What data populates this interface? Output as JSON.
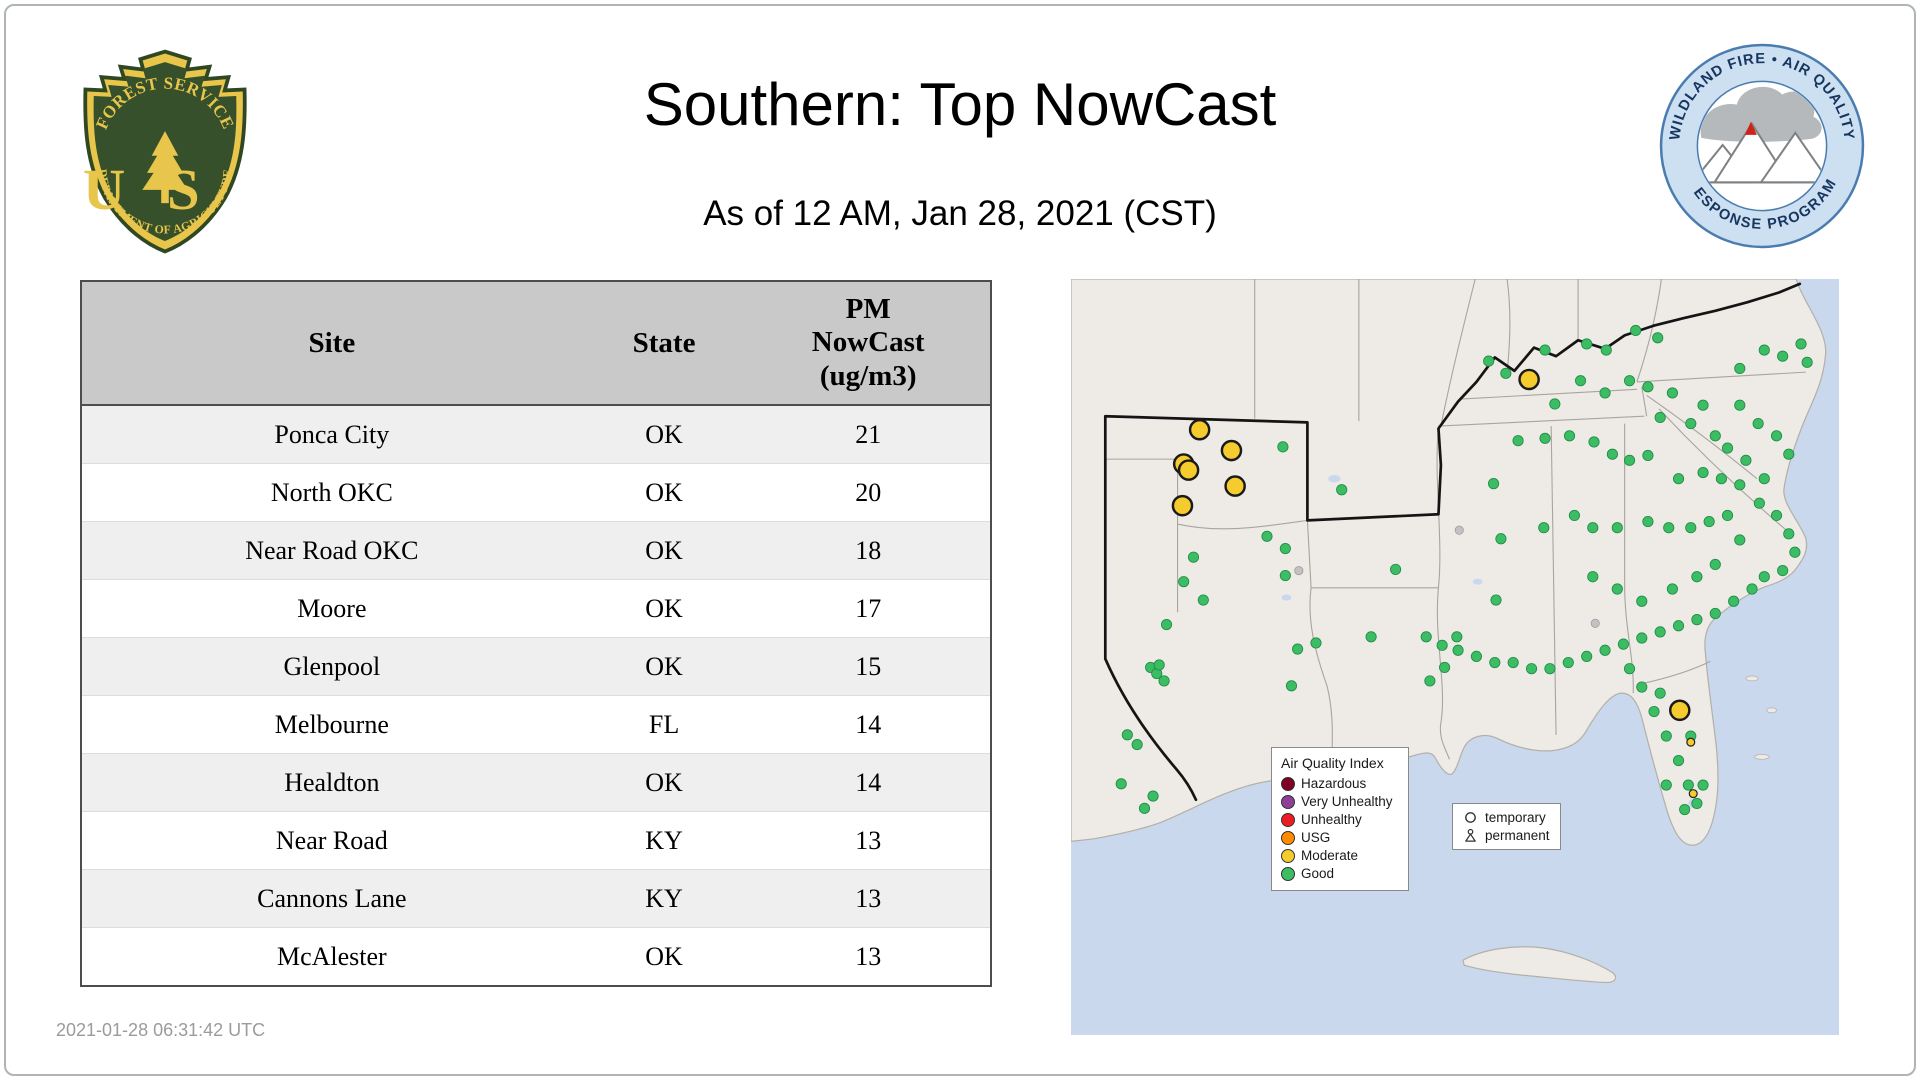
{
  "page": {
    "title": "Southern: Top NowCast",
    "subtitle": "As of 12 AM, Jan 28, 2021 (CST)",
    "generated_timestamp": "2021-01-28 06:31:42 UTC"
  },
  "logos": {
    "forest_service": {
      "arc_top": "FOREST SERVICE",
      "monogram": "US",
      "arc_bottom": "DEPARTMENT OF AGRICULTURE"
    },
    "response_program": {
      "arc_top": "WILDLAND FIRE • AIR QUALITY",
      "arc_bottom": "RESPONSE PROGRAM"
    }
  },
  "table": {
    "columns": [
      "Site",
      "State",
      "PM NowCast (ug/m3)"
    ],
    "rows": [
      {
        "site": "Ponca City",
        "state": "OK",
        "value": "21"
      },
      {
        "site": "North OKC",
        "state": "OK",
        "value": "20"
      },
      {
        "site": "Near Road OKC",
        "state": "OK",
        "value": "18"
      },
      {
        "site": "Moore",
        "state": "OK",
        "value": "17"
      },
      {
        "site": "Glenpool",
        "state": "OK",
        "value": "15"
      },
      {
        "site": "Melbourne",
        "state": "FL",
        "value": "14"
      },
      {
        "site": "Healdton",
        "state": "OK",
        "value": "14"
      },
      {
        "site": "Near Road",
        "state": "KY",
        "value": "13"
      },
      {
        "site": "Cannons Lane",
        "state": "KY",
        "value": "13"
      },
      {
        "site": "McAlester",
        "state": "OK",
        "value": "13"
      }
    ]
  },
  "map": {
    "legend": {
      "title": "Air Quality Index",
      "items": [
        {
          "label": "Hazardous",
          "color": "#7e0023"
        },
        {
          "label": "Very Unhealthy",
          "color": "#8f3f97"
        },
        {
          "label": "Unhealthy",
          "color": "#ed1c24"
        },
        {
          "label": "USG",
          "color": "#ff8c00"
        },
        {
          "label": "Moderate",
          "color": "#f5cb2d"
        },
        {
          "label": "Good",
          "color": "#3dbd63"
        }
      ]
    },
    "marker_legend": {
      "temporary": "temporary",
      "permanent": "permanent"
    },
    "colors": {
      "water": "#c9d8ec",
      "land": "#eeebe6",
      "land_outline": "#b3b0aa",
      "state_line": "#a8a49e",
      "region_boundary": "#141414",
      "good": "#3dbd63",
      "good_stroke": "#1f8c48",
      "moderate": "#f5cb2d",
      "moderate_stroke": "#1a1a1a",
      "inactive": "#c2c2c2"
    },
    "points": {
      "good": [
        [
          173,
          137
        ],
        [
          160,
          210
        ],
        [
          175,
          220
        ],
        [
          100,
          227
        ],
        [
          92,
          247
        ],
        [
          108,
          262
        ],
        [
          78,
          282
        ],
        [
          65,
          317
        ],
        [
          70,
          322
        ],
        [
          76,
          328
        ],
        [
          72,
          315
        ],
        [
          46,
          372
        ],
        [
          54,
          380
        ],
        [
          41,
          412
        ],
        [
          67,
          422
        ],
        [
          60,
          432
        ],
        [
          185,
          302
        ],
        [
          200,
          297
        ],
        [
          180,
          332
        ],
        [
          245,
          292
        ],
        [
          265,
          237
        ],
        [
          290,
          292
        ],
        [
          303,
          299
        ],
        [
          315,
          292
        ],
        [
          305,
          317
        ],
        [
          293,
          328
        ],
        [
          341,
          67
        ],
        [
          355,
          77
        ],
        [
          387,
          58
        ],
        [
          421,
          53
        ],
        [
          437,
          58
        ],
        [
          461,
          42
        ],
        [
          479,
          48
        ],
        [
          395,
          102
        ],
        [
          365,
          132
        ],
        [
          387,
          130
        ],
        [
          407,
          128
        ],
        [
          427,
          133
        ],
        [
          442,
          143
        ],
        [
          456,
          148
        ],
        [
          471,
          144
        ],
        [
          345,
          167
        ],
        [
          351,
          212
        ],
        [
          347,
          262
        ],
        [
          386,
          203
        ],
        [
          411,
          193
        ],
        [
          426,
          203
        ],
        [
          446,
          203
        ],
        [
          471,
          198
        ],
        [
          488,
          203
        ],
        [
          506,
          203
        ],
        [
          521,
          198
        ],
        [
          536,
          193
        ],
        [
          426,
          243
        ],
        [
          446,
          253
        ],
        [
          466,
          263
        ],
        [
          491,
          253
        ],
        [
          511,
          243
        ],
        [
          526,
          233
        ],
        [
          546,
          73
        ],
        [
          566,
          58
        ],
        [
          581,
          63
        ],
        [
          596,
          53
        ],
        [
          601,
          68
        ],
        [
          546,
          103
        ],
        [
          561,
          118
        ],
        [
          576,
          128
        ],
        [
          586,
          143
        ],
        [
          566,
          163
        ],
        [
          546,
          168
        ],
        [
          531,
          163
        ],
        [
          516,
          158
        ],
        [
          496,
          163
        ],
        [
          551,
          148
        ],
        [
          481,
          113
        ],
        [
          506,
          118
        ],
        [
          526,
          128
        ],
        [
          536,
          138
        ],
        [
          516,
          103
        ],
        [
          491,
          93
        ],
        [
          471,
          88
        ],
        [
          456,
          83
        ],
        [
          436,
          93
        ],
        [
          416,
          83
        ],
        [
          562,
          183
        ],
        [
          576,
          193
        ],
        [
          586,
          208
        ],
        [
          591,
          223
        ],
        [
          581,
          238
        ],
        [
          566,
          243
        ],
        [
          556,
          253
        ],
        [
          541,
          263
        ],
        [
          526,
          273
        ],
        [
          511,
          278
        ],
        [
          496,
          283
        ],
        [
          481,
          288
        ],
        [
          466,
          293
        ],
        [
          451,
          298
        ],
        [
          436,
          303
        ],
        [
          421,
          308
        ],
        [
          406,
          313
        ],
        [
          391,
          318
        ],
        [
          376,
          318
        ],
        [
          361,
          313
        ],
        [
          346,
          313
        ],
        [
          331,
          308
        ],
        [
          316,
          303
        ],
        [
          466,
          333
        ],
        [
          481,
          338
        ],
        [
          476,
          353
        ],
        [
          486,
          373
        ],
        [
          496,
          393
        ],
        [
          504,
          413
        ],
        [
          511,
          428
        ],
        [
          516,
          413
        ],
        [
          501,
          433
        ],
        [
          486,
          413
        ],
        [
          506,
          373
        ],
        [
          456,
          318
        ],
        [
          546,
          213
        ],
        [
          221,
          172
        ],
        [
          175,
          242
        ]
      ],
      "moderate": [
        [
          105,
          123
        ],
        [
          131,
          140
        ],
        [
          92,
          151
        ],
        [
          96,
          156
        ],
        [
          134,
          169
        ],
        [
          91,
          185
        ],
        [
          374,
          82
        ],
        [
          497,
          352
        ]
      ],
      "moderate_small": [
        [
          506,
          378
        ],
        [
          508,
          420
        ]
      ],
      "inactive": [
        [
          186,
          238
        ],
        [
          428,
          281
        ],
        [
          317,
          205
        ]
      ]
    }
  }
}
